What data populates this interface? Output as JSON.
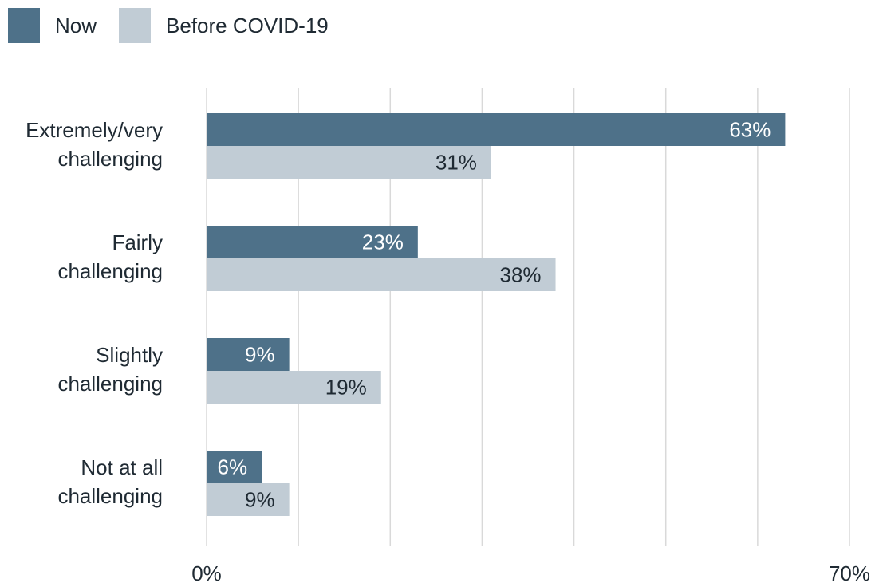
{
  "legend": {
    "items": [
      {
        "label": "Now",
        "color": "#4e7189"
      },
      {
        "label": "Before COVID-19",
        "color": "#c1ccd5"
      }
    ]
  },
  "chart_data": {
    "type": "bar",
    "orientation": "horizontal",
    "categories": [
      [
        "Extremely/very",
        "challenging"
      ],
      [
        "Fairly",
        "challenging"
      ],
      [
        "Slightly",
        "challenging"
      ],
      [
        "Not at all",
        "challenging"
      ]
    ],
    "series": [
      {
        "name": "Now",
        "color": "#4e7189",
        "label_color": "#ffffff",
        "values": [
          63,
          23,
          9,
          6
        ]
      },
      {
        "name": "Before COVID-19",
        "color": "#c1ccd5",
        "label_color": "#1f2a33",
        "values": [
          31,
          38,
          19,
          9
        ]
      }
    ],
    "value_suffix": "%",
    "xlim": [
      0,
      70
    ],
    "x_tick_labels": [
      "0%",
      "70%"
    ],
    "gridlines": [
      0,
      10,
      20,
      30,
      40,
      50,
      60,
      70
    ],
    "grid": true,
    "legend_position": "top-left",
    "title": "",
    "xlabel": "",
    "ylabel": ""
  }
}
